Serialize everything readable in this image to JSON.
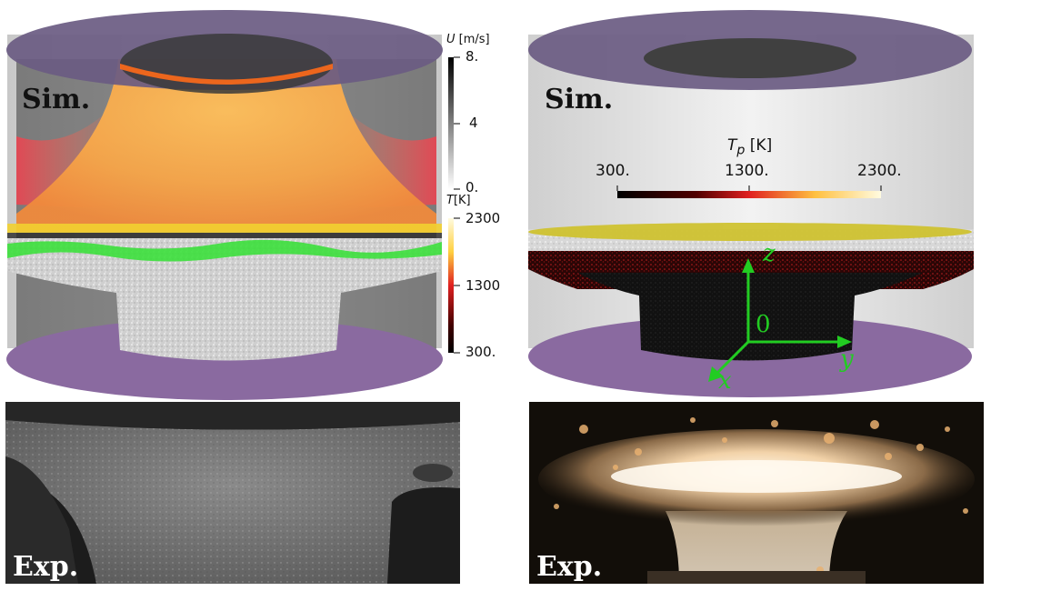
{
  "panels": {
    "top_left": {
      "label": "Sim."
    },
    "top_right": {
      "label": "Sim."
    },
    "bottom_left": {
      "label": "Exp."
    },
    "bottom_right": {
      "label": "Exp."
    }
  },
  "colorbar_u": {
    "title_var": "U",
    "title_unit": "[m/s]",
    "ticks": [
      "8.",
      "4",
      "0."
    ]
  },
  "colorbar_t": {
    "title_var": "T",
    "title_unit": "[K]",
    "ticks": [
      "2300",
      "1300",
      "300."
    ]
  },
  "colorbar_tp": {
    "title_var": "T",
    "title_sub": "p",
    "title_unit": "[K]",
    "ticks": [
      "300.",
      "1300.",
      "2300."
    ]
  },
  "axes": {
    "x": "x",
    "y": "y",
    "z": "z",
    "origin": "0"
  },
  "colors": {
    "cylinder_lid": "#6a5b82",
    "bottom_disc": "#8a6aa0",
    "axis_green": "#22cc22",
    "flame_orange": "#ffb050"
  }
}
